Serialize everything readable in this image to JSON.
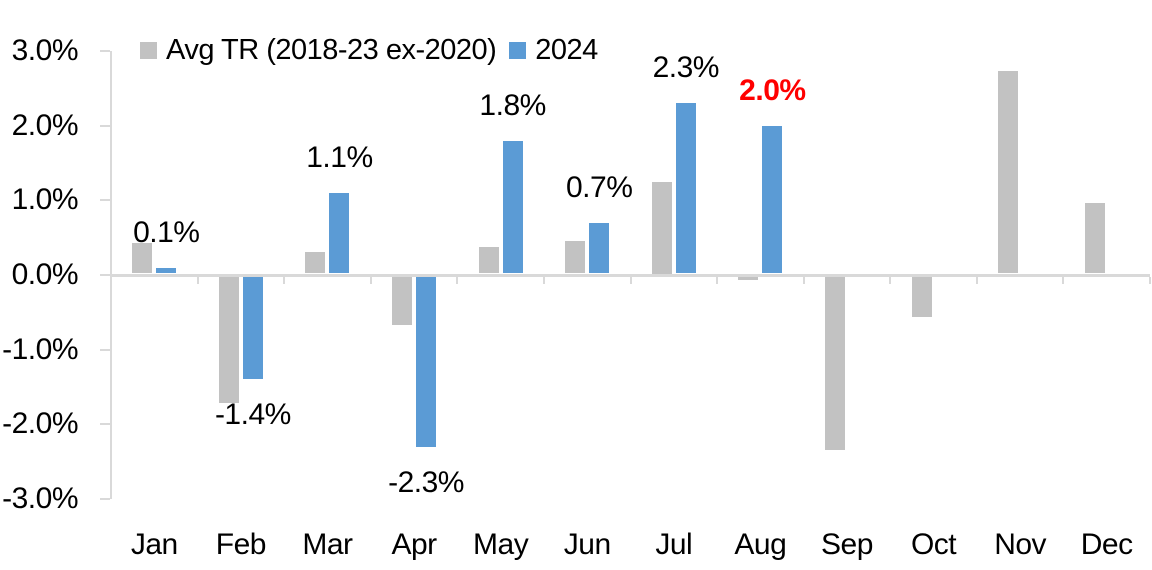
{
  "chart_data": {
    "type": "bar",
    "title": "",
    "categories": [
      "Jan",
      "Feb",
      "Mar",
      "Apr",
      "May",
      "Jun",
      "Jul",
      "Aug",
      "Sep",
      "Oct",
      "Nov",
      "Dec"
    ],
    "series": [
      {
        "name": "Avg TR (2018-23 ex-2020)",
        "color": "#C2C2C2",
        "values": [
          0.43,
          -1.72,
          0.31,
          -0.67,
          0.37,
          0.46,
          1.25,
          -0.07,
          -2.35,
          -0.56,
          2.73,
          0.97
        ]
      },
      {
        "name": "2024",
        "color": "#5B9BD5",
        "values": [
          0.1,
          -1.4,
          1.1,
          -2.3,
          1.8,
          0.7,
          2.3,
          2.0,
          null,
          null,
          null,
          null
        ]
      }
    ],
    "data_labels": [
      {
        "text": "0.1%",
        "color": "#000000",
        "bold": false
      },
      {
        "text": "-1.4%",
        "color": "#000000",
        "bold": false
      },
      {
        "text": "1.1%",
        "color": "#000000",
        "bold": false
      },
      {
        "text": "-2.3%",
        "color": "#000000",
        "bold": false
      },
      {
        "text": "1.8%",
        "color": "#000000",
        "bold": false
      },
      {
        "text": "0.7%",
        "color": "#000000",
        "bold": false
      },
      {
        "text": "2.3%",
        "color": "#000000",
        "bold": false
      },
      {
        "text": "2.0%",
        "color": "#FF0000",
        "bold": true
      },
      null,
      null,
      null,
      null
    ],
    "ylim": [
      -3,
      3
    ],
    "ytick_step": 1,
    "ytick_labels": [
      "3.0%",
      "2.0%",
      "1.0%",
      "0.0%",
      "-1.0%",
      "-2.0%",
      "-3.0%"
    ],
    "xlabel": "",
    "ylabel": "",
    "grid": false,
    "legend_position": "top",
    "axis_color": "#D9D9D9",
    "background": "#FFFFFF",
    "highlight_label_color": "#FF0000"
  }
}
